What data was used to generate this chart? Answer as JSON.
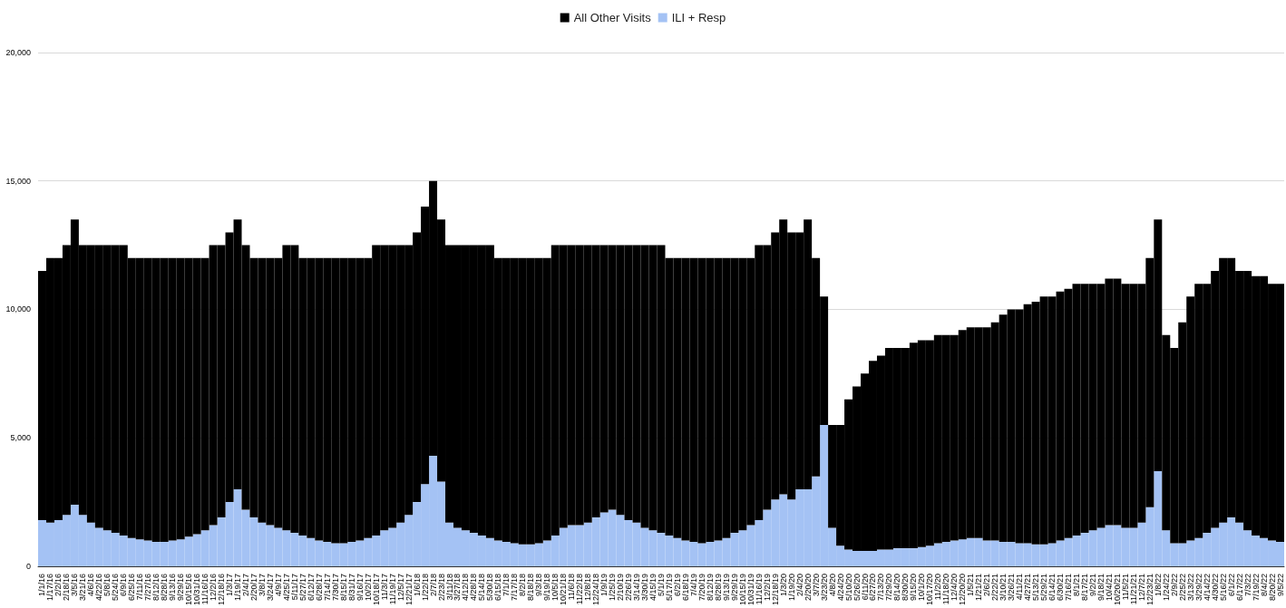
{
  "chart_data": {
    "type": "bar",
    "stacked": true,
    "grid": "y",
    "legend": "top",
    "categories": [
      "1/1/16",
      "1/17/16",
      "2/2/16",
      "2/18/16",
      "3/5/16",
      "3/21/16",
      "4/6/16",
      "4/22/16",
      "5/8/16",
      "5/24/16",
      "6/9/16",
      "6/25/16",
      "7/11/16",
      "7/27/16",
      "8/12/16",
      "8/28/16",
      "9/13/16",
      "9/29/16",
      "10/15/16",
      "10/31/16",
      "11/16/16",
      "12/2/16",
      "12/18/16",
      "1/3/17",
      "1/19/17",
      "2/4/17",
      "2/20/17",
      "3/8/17",
      "3/24/17",
      "4/9/17",
      "4/25/17",
      "5/11/17",
      "5/27/17",
      "6/12/17",
      "6/28/17",
      "7/14/17",
      "7/30/17",
      "8/15/17",
      "8/31/17",
      "9/16/17",
      "10/2/17",
      "10/18/17",
      "11/3/17",
      "11/19/17",
      "12/5/17",
      "12/21/17",
      "1/6/18",
      "1/22/18",
      "2/7/18",
      "2/23/18",
      "3/11/18",
      "3/27/18",
      "4/12/18",
      "4/28/18",
      "5/14/18",
      "5/30/18",
      "6/15/18",
      "7/1/18",
      "7/17/18",
      "8/2/18",
      "8/18/18",
      "9/3/18",
      "9/19/18",
      "10/5/18",
      "10/21/18",
      "11/6/18",
      "11/22/18",
      "12/8/18",
      "12/24/18",
      "1/9/19",
      "1/25/19",
      "2/10/19",
      "2/26/19",
      "3/14/19",
      "3/30/19",
      "4/15/19",
      "5/1/19",
      "5/17/19",
      "6/2/19",
      "6/18/19",
      "7/4/19",
      "7/20/19",
      "8/12/19",
      "8/28/19",
      "9/13/19",
      "9/29/19",
      "10/15/19",
      "10/31/19",
      "11/16/19",
      "12/2/19",
      "12/18/19",
      "1/3/20",
      "1/19/20",
      "2/4/20",
      "2/20/20",
      "3/7/20",
      "3/23/20",
      "4/8/20",
      "4/24/20",
      "5/10/20",
      "5/26/20",
      "6/11/20",
      "6/27/20",
      "7/13/20",
      "7/29/20",
      "8/14/20",
      "8/30/20",
      "9/15/20",
      "10/1/20",
      "10/17/20",
      "11/2/20",
      "11/18/20",
      "12/4/20",
      "12/20/20",
      "1/5/21",
      "1/21/21",
      "2/6/21",
      "2/22/21",
      "3/10/21",
      "3/26/21",
      "4/11/21",
      "4/27/21",
      "5/13/21",
      "5/29/21",
      "6/14/21",
      "6/30/21",
      "7/16/21",
      "8/1/21",
      "8/17/21",
      "9/2/21",
      "9/18/21",
      "10/4/21",
      "10/20/21",
      "11/5/21",
      "11/21/21",
      "12/7/21",
      "12/23/21",
      "1/8/22",
      "1/24/22",
      "2/9/22",
      "2/25/22",
      "3/13/22",
      "3/29/22",
      "4/14/22",
      "4/30/22",
      "5/16/22",
      "6/1/22",
      "6/17/22",
      "7/3/22",
      "7/19/22",
      "8/4/22",
      "8/20/22",
      "9/5/22"
    ],
    "series": [
      {
        "name": "ILI + Resp",
        "color": "#a4c2f4",
        "values": [
          1800,
          1700,
          1800,
          2000,
          2400,
          2000,
          1700,
          1500,
          1400,
          1300,
          1200,
          1100,
          1050,
          1000,
          950,
          950,
          1000,
          1050,
          1150,
          1250,
          1400,
          1600,
          1900,
          2500,
          3000,
          2200,
          1900,
          1700,
          1600,
          1500,
          1400,
          1300,
          1200,
          1100,
          1000,
          950,
          900,
          900,
          950,
          1000,
          1100,
          1200,
          1400,
          1500,
          1700,
          2000,
          2500,
          3200,
          4300,
          3300,
          1700,
          1500,
          1400,
          1300,
          1200,
          1100,
          1000,
          950,
          900,
          850,
          850,
          900,
          1000,
          1200,
          1500,
          1600,
          1600,
          1700,
          1900,
          2100,
          2200,
          2000,
          1800,
          1700,
          1500,
          1400,
          1300,
          1200,
          1100,
          1000,
          950,
          900,
          950,
          1000,
          1100,
          1300,
          1400,
          1600,
          1800,
          2200,
          2600,
          2800,
          2600,
          3000,
          3000,
          3500,
          5500,
          1500,
          800,
          650,
          600,
          600,
          600,
          650,
          650,
          700,
          700,
          700,
          750,
          800,
          900,
          950,
          1000,
          1050,
          1100,
          1100,
          1000,
          1000,
          950,
          950,
          900,
          900,
          850,
          850,
          900,
          1000,
          1100,
          1200,
          1300,
          1400,
          1500,
          1600,
          1600,
          1500,
          1500,
          1700,
          2300,
          3700,
          1400,
          900,
          900,
          1000,
          1100,
          1300,
          1500,
          1700,
          1900,
          1700,
          1400,
          1200,
          1100,
          1000,
          950
        ]
      },
      {
        "name": "All Other Visits",
        "color": "#000000",
        "values": [
          9700,
          10300,
          10200,
          10500,
          11100,
          10500,
          10800,
          11000,
          11100,
          11200,
          11300,
          10900,
          10950,
          11000,
          11050,
          11050,
          11000,
          10950,
          10850,
          10750,
          10600,
          10900,
          10600,
          10500,
          10500,
          10300,
          10100,
          10300,
          10400,
          10500,
          11100,
          11200,
          10800,
          10900,
          11000,
          11050,
          11100,
          11100,
          11050,
          11000,
          10900,
          11300,
          11100,
          11000,
          10800,
          10500,
          10500,
          10800,
          10700,
          10200,
          10800,
          11000,
          11100,
          11200,
          11300,
          11400,
          11000,
          11050,
          11100,
          11150,
          11150,
          11100,
          11000,
          11300,
          11000,
          10900,
          10900,
          10800,
          10600,
          10400,
          10300,
          10500,
          10700,
          10800,
          11000,
          11100,
          11200,
          10800,
          10900,
          11000,
          11050,
          11100,
          11050,
          11000,
          10900,
          10700,
          10600,
          10400,
          10700,
          10300,
          10400,
          10700,
          10400,
          10000,
          10500,
          8500,
          5000,
          4000,
          4700,
          5850,
          6400,
          6900,
          7400,
          7550,
          7850,
          7800,
          7800,
          8000,
          8050,
          8000,
          8100,
          8050,
          8000,
          8150,
          8200,
          8200,
          8300,
          8500,
          8850,
          9050,
          9100,
          9300,
          9450,
          9650,
          9600,
          9700,
          9700,
          9800,
          9700,
          9600,
          9500,
          9600,
          9600,
          9500,
          9500,
          9300,
          9700,
          9800,
          7600,
          7600,
          8600,
          9500,
          9900,
          9700,
          10000,
          10300,
          10100,
          9800,
          10100,
          10100,
          10200,
          10000,
          10050
        ]
      }
    ],
    "ylim": [
      0,
      20000
    ],
    "yticks": [
      {
        "value": 0,
        "label": "0"
      },
      {
        "value": 5000,
        "label": "5,000"
      },
      {
        "value": 10000,
        "label": "10,000"
      },
      {
        "value": 15000,
        "label": "15,000"
      },
      {
        "value": 20000,
        "label": "20,000"
      }
    ]
  }
}
